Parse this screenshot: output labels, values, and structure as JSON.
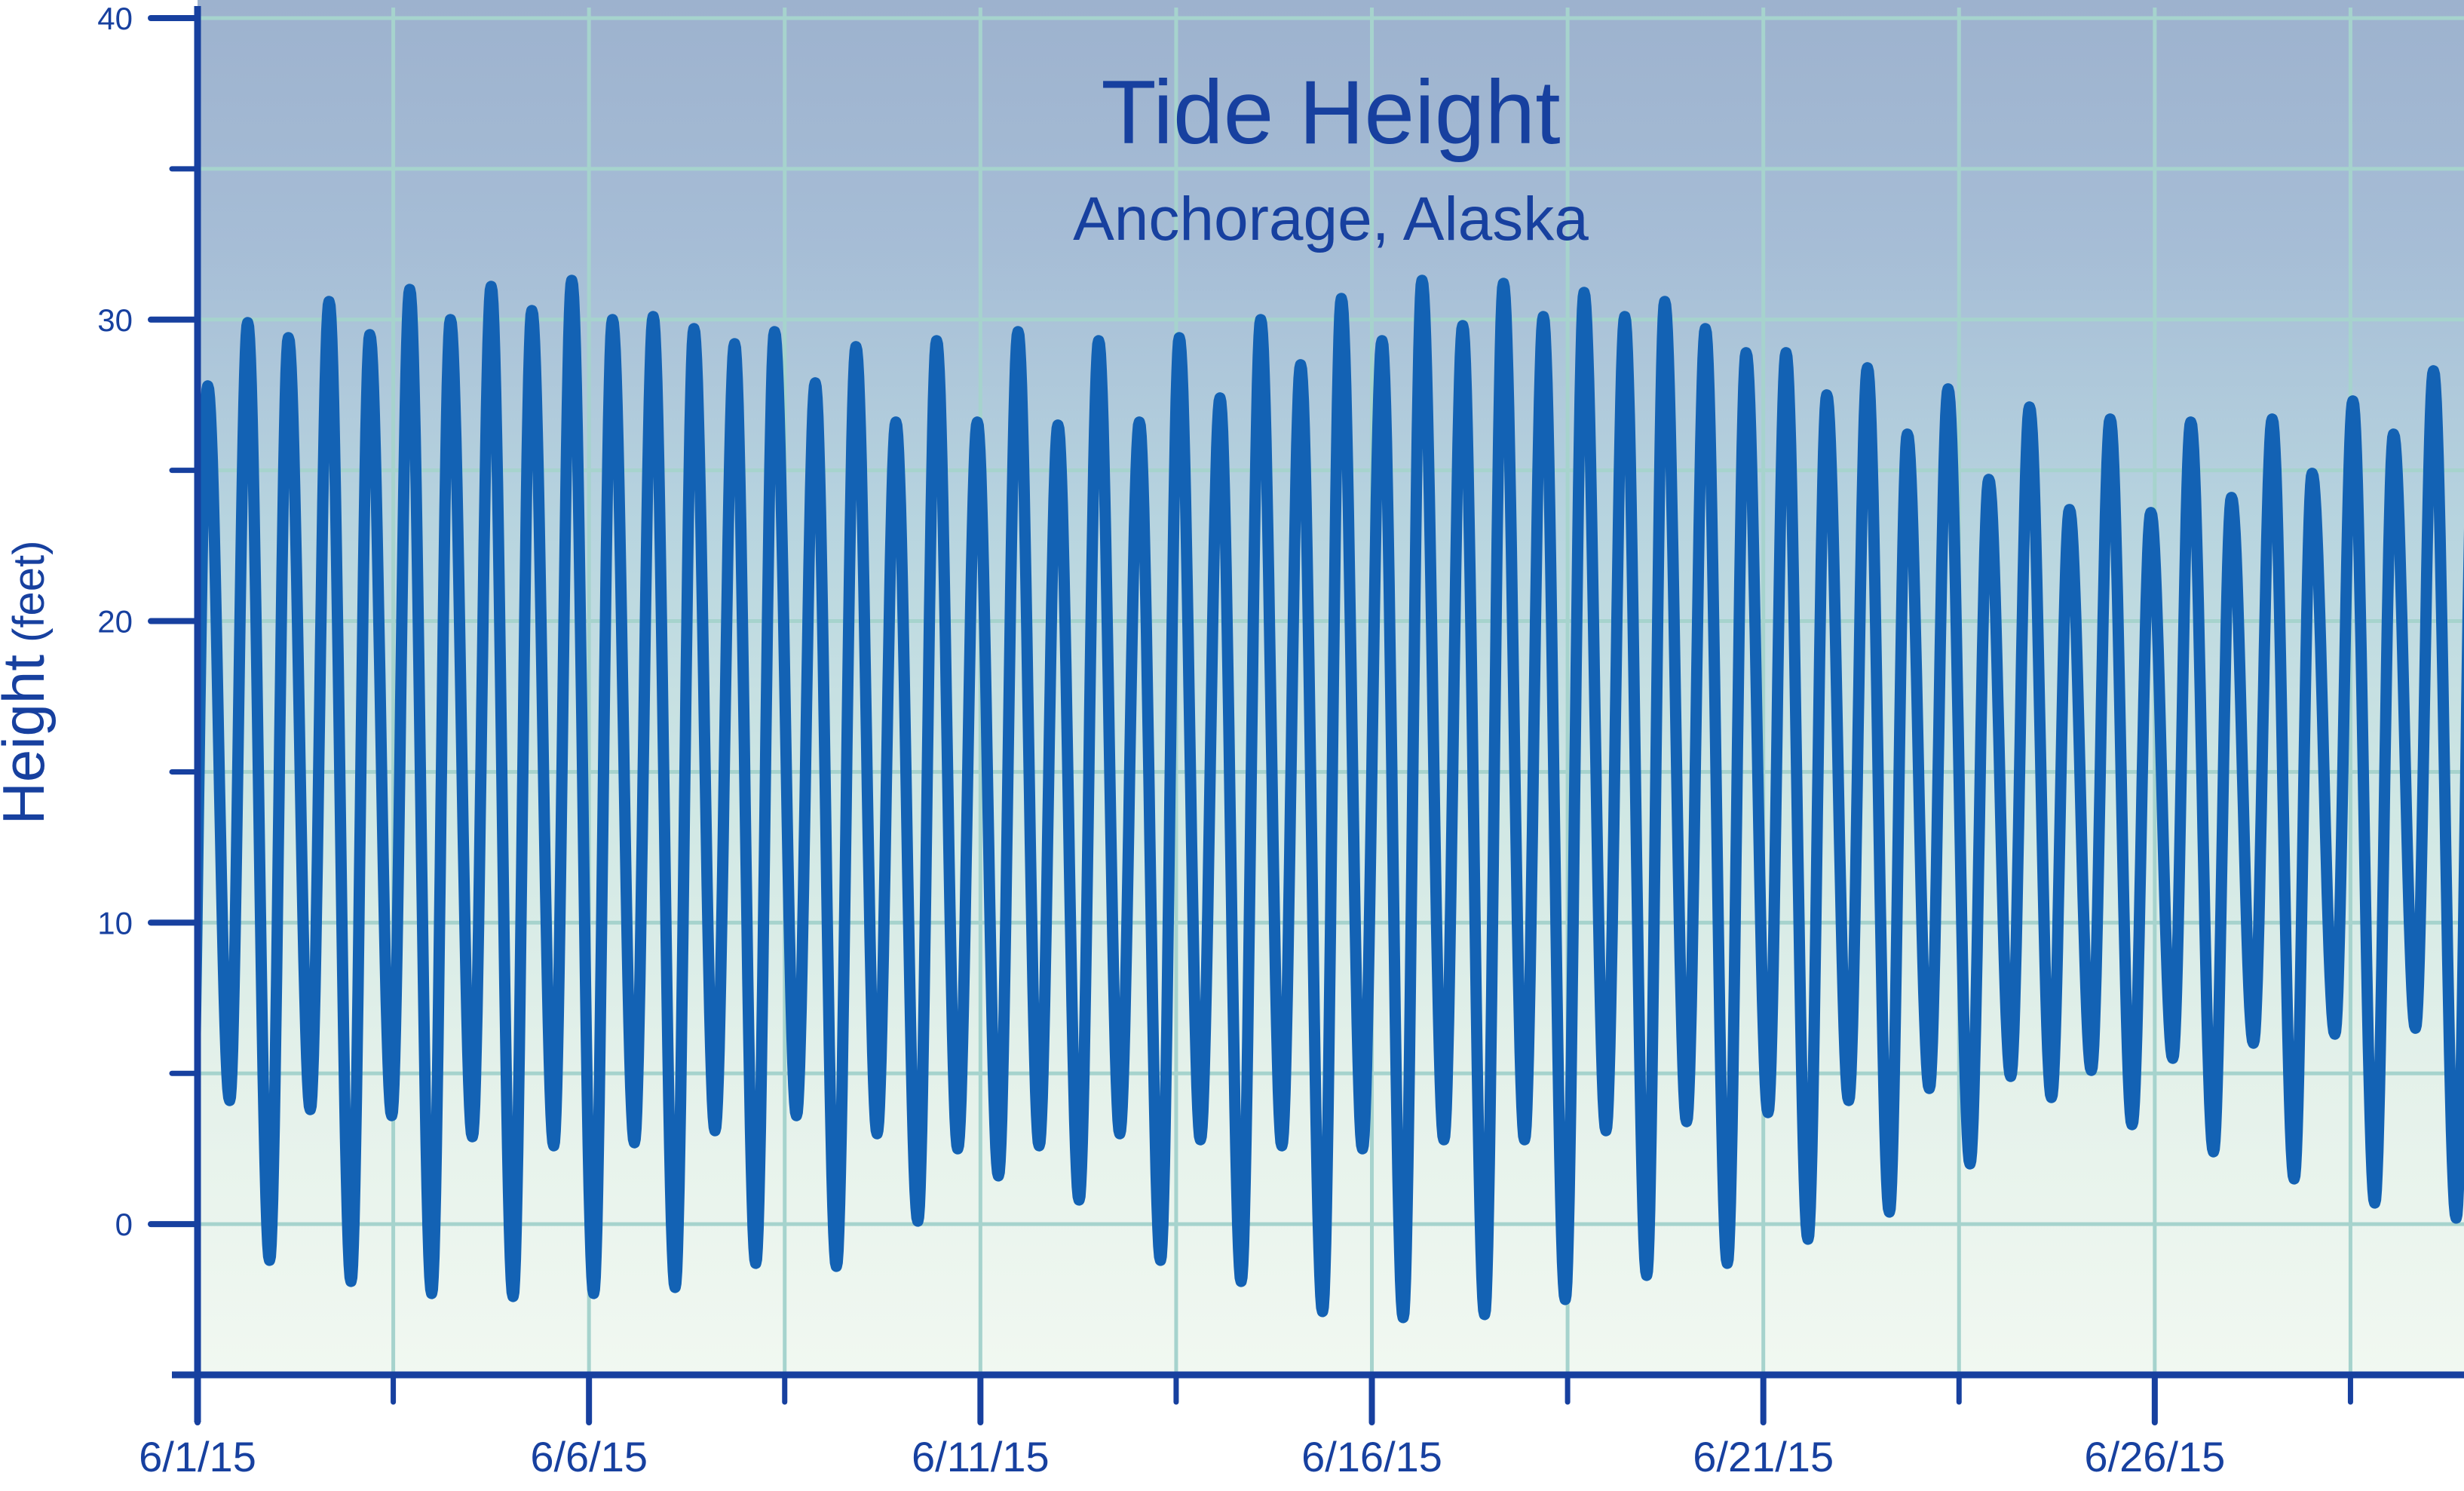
{
  "title": "Tide Height",
  "subtitle": "Anchorage, Alaska",
  "y_axis": {
    "label_main": "Height",
    "label_unit": " (feet)",
    "major_ticks": [
      0,
      10,
      20,
      30,
      40
    ],
    "minor_ticks": [
      5,
      15,
      25,
      35
    ],
    "min": -5,
    "max": 40.6
  },
  "x_axis": {
    "major_tick_labels": [
      "6/1/15",
      "6/6/15",
      "6/11/15",
      "6/16/15",
      "6/21/15",
      "6/26/15"
    ],
    "major_tick_days": [
      0,
      5,
      10,
      15,
      20,
      25
    ],
    "minor_tick_days": [
      2.5,
      7.5,
      12.5,
      17.5,
      22.5,
      27.5
    ],
    "gridline_step_days": 2.5,
    "days_span": 28.95
  },
  "colors": {
    "axis_and_text": "#17409f",
    "curve": "#1362b4",
    "gridline": "#a6d3cd",
    "bg_gradient_stops": [
      "#9db2ce",
      "#a6bdd6",
      "#b7d4df",
      "#cfe7e4",
      "#e4f1ea",
      "#f1f8f1"
    ],
    "page_bg": "#ffffff"
  },
  "chart_data": {
    "type": "line",
    "title": "Tide Height",
    "subtitle": "Anchorage, Alaska",
    "ylabel": "Height (feet)",
    "ylim": [
      -5,
      40.6
    ],
    "grid_step_y_feet": 5,
    "grid_step_x_days": 2.5,
    "x_unit": "days since 6/1/15 00:00",
    "x_tick_labels": [
      "6/1/15",
      "6/6/15",
      "6/11/15",
      "6/16/15",
      "6/21/15",
      "6/26/15"
    ],
    "x_tick_days": [
      0,
      5,
      10,
      15,
      20,
      25
    ],
    "x_range_days": [
      0,
      28.95
    ],
    "series": [
      {
        "name": "Tide height",
        "unit": "feet",
        "interpolation": "cosine-between-extremes",
        "semidiurnal_period_days": 0.51753,
        "lead_in": {
          "t": -0.11,
          "h": -1.1
        },
        "lead_out": {
          "t": 29.08,
          "h": 27.0
        },
        "extremes": {
          "highs_t_days": [
            0.13,
            0.64,
            1.16,
            1.68,
            2.2,
            2.71,
            3.23,
            3.75,
            4.27,
            4.78,
            5.3,
            5.82,
            6.34,
            6.86,
            7.37,
            7.89,
            8.41,
            8.92,
            9.44,
            9.96,
            10.48,
            10.99,
            11.51,
            12.03,
            12.54,
            13.06,
            13.58,
            14.09,
            14.61,
            15.13,
            15.64,
            16.16,
            16.68,
            17.19,
            17.71,
            18.23,
            18.74,
            19.26,
            19.78,
            20.29,
            20.81,
            21.33,
            21.84,
            22.36,
            22.88,
            23.4,
            23.91,
            24.43,
            24.95,
            25.46,
            25.98,
            26.5,
            27.01,
            27.53,
            28.05,
            28.56
          ],
          "highs_ft": [
            27.8,
            29.9,
            29.4,
            30.6,
            29.5,
            31.0,
            30.0,
            31.1,
            30.3,
            31.3,
            30.0,
            30.1,
            29.7,
            29.2,
            29.6,
            27.9,
            29.1,
            26.6,
            29.3,
            26.6,
            29.6,
            26.5,
            29.3,
            26.6,
            29.4,
            27.4,
            30.0,
            28.5,
            30.7,
            29.3,
            31.3,
            29.8,
            31.2,
            30.1,
            30.9,
            30.1,
            30.6,
            29.7,
            28.9,
            28.9,
            27.5,
            28.4,
            26.2,
            27.7,
            24.7,
            27.1,
            23.7,
            26.7,
            23.6,
            26.6,
            24.1,
            26.7,
            24.9,
            27.3,
            26.2,
            28.3
          ],
          "lows_t_days": [
            0.41,
            0.92,
            1.44,
            1.96,
            2.48,
            2.99,
            3.51,
            4.03,
            4.55,
            5.06,
            5.58,
            6.1,
            6.61,
            7.13,
            7.65,
            8.16,
            8.68,
            9.2,
            9.71,
            10.23,
            10.75,
            11.26,
            11.78,
            12.3,
            12.81,
            13.33,
            13.85,
            14.37,
            14.88,
            15.4,
            15.92,
            16.44,
            16.95,
            17.47,
            17.99,
            18.51,
            19.02,
            19.54,
            20.06,
            20.57,
            21.09,
            21.61,
            22.12,
            22.64,
            23.16,
            23.68,
            24.19,
            24.71,
            25.23,
            25.75,
            26.26,
            26.78,
            27.3,
            27.81,
            28.33,
            28.85
          ],
          "lows_ft": [
            4.1,
            -1.2,
            3.8,
            -1.9,
            3.6,
            -2.3,
            2.9,
            -2.4,
            2.6,
            -2.3,
            2.7,
            -2.1,
            3.1,
            -1.3,
            3.6,
            -1.4,
            3.0,
            0.1,
            2.5,
            1.6,
            2.6,
            0.8,
            3.0,
            -1.2,
            2.8,
            -1.9,
            2.6,
            -2.9,
            2.5,
            -3.1,
            2.8,
            -3.0,
            2.8,
            -2.5,
            3.1,
            -1.7,
            3.4,
            -1.3,
            3.7,
            -0.5,
            4.1,
            0.4,
            4.5,
            2.0,
            4.9,
            4.2,
            5.1,
            3.3,
            5.5,
            2.4,
            6.0,
            1.5,
            6.3,
            0.7,
            6.5,
            0.2
          ]
        }
      }
    ]
  }
}
